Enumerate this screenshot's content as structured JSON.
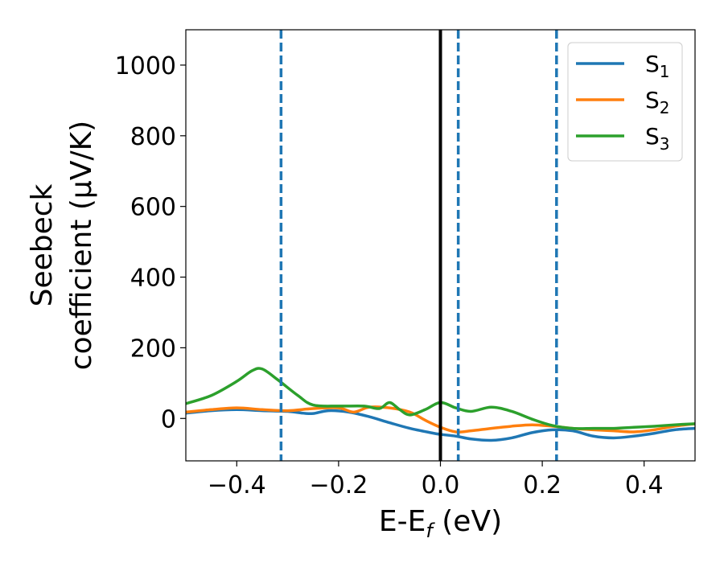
{
  "chart_data": {
    "type": "line",
    "xlabel": "E-E",
    "xlabel_sub": "f",
    "xlabel_unit": " (eV)",
    "ylabel_line1": "Seebeck",
    "ylabel_line2": "coefficient  (μV/K)",
    "xlim": [
      -0.5,
      0.5
    ],
    "ylim": [
      -120,
      1100
    ],
    "xticks": [
      -0.4,
      -0.2,
      0.0,
      0.2,
      0.4
    ],
    "xtick_labels": [
      "−0.4",
      "−0.2",
      "0.0",
      "0.2",
      "0.4"
    ],
    "yticks": [
      0,
      200,
      400,
      600,
      800,
      1000
    ],
    "ytick_labels": [
      "0",
      "200",
      "400",
      "600",
      "800",
      "1000"
    ],
    "grid": false,
    "legend_position": "top-right",
    "fermi_line_x": 0.0,
    "dashed_lines_x": [
      -0.313,
      0.035,
      0.228
    ],
    "series": [
      {
        "name": "S",
        "sub": "1",
        "color": "#1f77b4",
        "x": [
          -0.5,
          -0.45,
          -0.4,
          -0.35,
          -0.3,
          -0.27,
          -0.25,
          -0.22,
          -0.18,
          -0.14,
          -0.1,
          -0.06,
          -0.02,
          0.0,
          0.03,
          0.06,
          0.1,
          0.14,
          0.18,
          0.22,
          0.26,
          0.3,
          0.34,
          0.38,
          0.42,
          0.46,
          0.5
        ],
        "y": [
          15,
          22,
          25,
          22,
          20,
          15,
          14,
          22,
          18,
          5,
          -12,
          -28,
          -40,
          -45,
          -50,
          -58,
          -62,
          -55,
          -40,
          -32,
          -35,
          -50,
          -55,
          -50,
          -42,
          -32,
          -28
        ]
      },
      {
        "name": "S",
        "sub": "2",
        "color": "#ff7f0e",
        "x": [
          -0.5,
          -0.45,
          -0.4,
          -0.35,
          -0.3,
          -0.25,
          -0.2,
          -0.17,
          -0.14,
          -0.1,
          -0.06,
          -0.03,
          0.0,
          0.03,
          0.06,
          0.1,
          0.14,
          0.18,
          0.22,
          0.26,
          0.3,
          0.34,
          0.38,
          0.42,
          0.46,
          0.5
        ],
        "y": [
          18,
          25,
          30,
          25,
          22,
          28,
          30,
          18,
          32,
          30,
          18,
          -5,
          -25,
          -38,
          -35,
          -28,
          -22,
          -18,
          -22,
          -28,
          -32,
          -35,
          -38,
          -32,
          -22,
          -15
        ]
      },
      {
        "name": "S",
        "sub": "3",
        "color": "#2ca02c",
        "x": [
          -0.5,
          -0.45,
          -0.4,
          -0.37,
          -0.35,
          -0.32,
          -0.28,
          -0.25,
          -0.2,
          -0.15,
          -0.12,
          -0.1,
          -0.08,
          -0.06,
          -0.03,
          0.0,
          0.03,
          0.06,
          0.1,
          0.14,
          0.18,
          0.22,
          0.26,
          0.3,
          0.34,
          0.38,
          0.42,
          0.46,
          0.5
        ],
        "y": [
          42,
          65,
          105,
          135,
          140,
          110,
          65,
          38,
          35,
          35,
          28,
          45,
          25,
          10,
          25,
          45,
          30,
          20,
          32,
          20,
          -2,
          -20,
          -28,
          -28,
          -28,
          -25,
          -22,
          -18,
          -15
        ]
      }
    ]
  }
}
